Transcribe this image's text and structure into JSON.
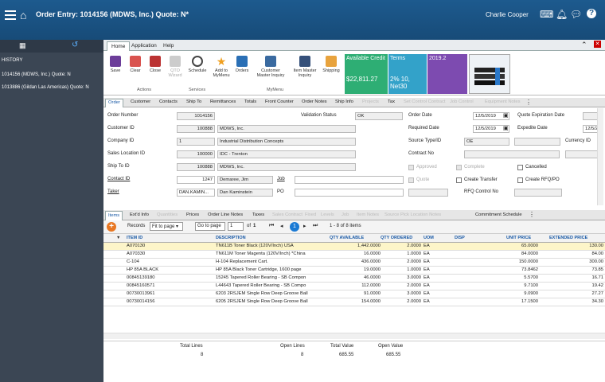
{
  "header": {
    "title": "Order Entry: 1014156 (MDWS, Inc.) Quote: N*",
    "user": "Charlie Cooper"
  },
  "left": {
    "history_label": "HISTORY",
    "history": [
      "1014156 (MDWS, Inc.) Quote: N",
      "1013886 (Gildan Las Americas) Quote: N"
    ]
  },
  "ribbon_tabs": [
    "Home",
    "Application",
    "Help"
  ],
  "ribbon": {
    "buttons": [
      "Save",
      "Clear",
      "Close",
      "QTO Wizard",
      "Schedule",
      "Add to MyMenu",
      "Orders",
      "Customer Master Inquiry",
      "Item Master Inquiry",
      "Shipping"
    ],
    "groups": [
      "Actions",
      "Services",
      "MyMenu"
    ],
    "tiles": [
      {
        "label": "Available Credit",
        "value": "$22,811.27",
        "color": "#2eae74"
      },
      {
        "label": "Terms",
        "value": "2% 10, Net30",
        "color": "#33a2c9"
      },
      {
        "label": "2019.2",
        "value": "",
        "color": "#7d4bb0"
      }
    ]
  },
  "form_tabs": [
    "Order",
    "Customer",
    "Contacts",
    "Ship To",
    "Remittances",
    "Totals",
    "Front Counter",
    "Order Notes",
    "Ship Info",
    "Projects",
    "Tax",
    "Set Control Contract",
    "Job Control",
    "Equipment Notes"
  ],
  "form": {
    "order_number": {
      "label": "Order Number",
      "value": "1014156"
    },
    "customer_id": {
      "label": "Customer ID",
      "value": "100888",
      "name": "MDWS, Inc."
    },
    "company_id": {
      "label": "Company ID",
      "value": "1",
      "name": "Industrial Distribution Concepts"
    },
    "sales_location": {
      "label": "Sales Location ID",
      "value": "100000",
      "name": "IDC - Trenton"
    },
    "ship_to": {
      "label": "Ship To ID",
      "value": "100888",
      "name": "MDWS, Inc."
    },
    "contact": {
      "label": "Contact ID",
      "value": "1247",
      "name": "Demaree, Jim"
    },
    "taker": {
      "label": "Taker",
      "value": "DAN.KAMIN...",
      "name": "Dan Kaminstein"
    },
    "validation": {
      "label": "Validation Status",
      "value": "OK"
    },
    "job": "Job",
    "po": "PO",
    "order_date": {
      "label": "Order Date",
      "value": "12/5/2019"
    },
    "required_date": {
      "label": "Required Date",
      "value": "12/5/2019"
    },
    "source_type": {
      "label": "Source Type/ID",
      "value": "OE"
    },
    "contract_no": "Contract No",
    "quote_exp": "Quote Expiration Date",
    "expedite": {
      "label": "Expedite Date",
      "value": "12/5/2"
    },
    "currency": "Currency ID",
    "approved": "Approved",
    "complete": "Complete",
    "cancelled": "Cancelled",
    "quote": "Quote",
    "create_transfer": "Create Transfer",
    "create_rfq": "Create RFQ/PO",
    "rfq_control": "RFQ Control No"
  },
  "grid_tabs": [
    "Items",
    "Ext'd Info",
    "Quantities",
    "Prices",
    "Order Line Notes",
    "Taxes",
    "Sales Contract",
    "Fixed",
    "Levels",
    "Job",
    "Item Notes",
    "Source Pick Location Notes",
    "Commitment Schedule"
  ],
  "toolbar": {
    "records_label": "Records",
    "records_value": "Fit to page",
    "goto_label": "Go to page",
    "page_value": "1",
    "of_label": "of",
    "total_pages": "1",
    "current_page": "1",
    "count": "1 - 8 of 8 items"
  },
  "columns": [
    "ITEM ID",
    "DESCRIPTION",
    "QTY AVAILABLE",
    "QTY ORDERED",
    "UOM",
    "DISP",
    "UNIT PRICE",
    "EXTENDED PRICE"
  ],
  "rows": [
    [
      "A070130",
      "TN611B Toner Black (120V/Inch) USA",
      "1,442.0000",
      "2.0000",
      "EA",
      "",
      "65.0000",
      "130.00"
    ],
    [
      "A070330",
      "TN611M Toner Magenta (120V/Inch) *China",
      "16.0000",
      "1.0000",
      "EA",
      "",
      "84.0000",
      "84.00"
    ],
    [
      "C-104",
      "H-104 Replacement Cart.",
      "436.0000",
      "2.0000",
      "EA",
      "",
      "150.0000",
      "300.00"
    ],
    [
      "HP 85A BLACK",
      "HP 85A Black Toner Cartridge, 1600 page",
      "19.0000",
      "1.0000",
      "EA",
      "",
      "73.8462",
      "73.85"
    ],
    [
      "00845139180",
      "15245 Tapered Roller Bearing - SB Compon",
      "46.0000",
      "3.0000",
      "EA",
      "",
      "5.5700",
      "16.71"
    ],
    [
      "00845160571",
      "L44643 Tapered Roller Bearing - SB Compo",
      "112.0000",
      "2.0000",
      "EA",
      "",
      "9.7100",
      "19.42"
    ],
    [
      "00730013961",
      "6203 2RSJEM Single Row Deep Groove Ball",
      "91.0000",
      "3.0000",
      "EA",
      "",
      "9.0900",
      "27.27"
    ],
    [
      "00730014156",
      "6205 2RSJEM Single Row Deep Groove Ball",
      "154.0000",
      "2.0000",
      "EA",
      "",
      "17.1500",
      "34.30"
    ]
  ],
  "totals": {
    "total_lines_label": "Total Lines",
    "total_lines": "8",
    "open_lines_label": "Open Lines",
    "open_lines": "8",
    "total_value_label": "Total Value",
    "total_value": "685.55",
    "open_value_label": "Open Value",
    "open_value": "685.55"
  }
}
